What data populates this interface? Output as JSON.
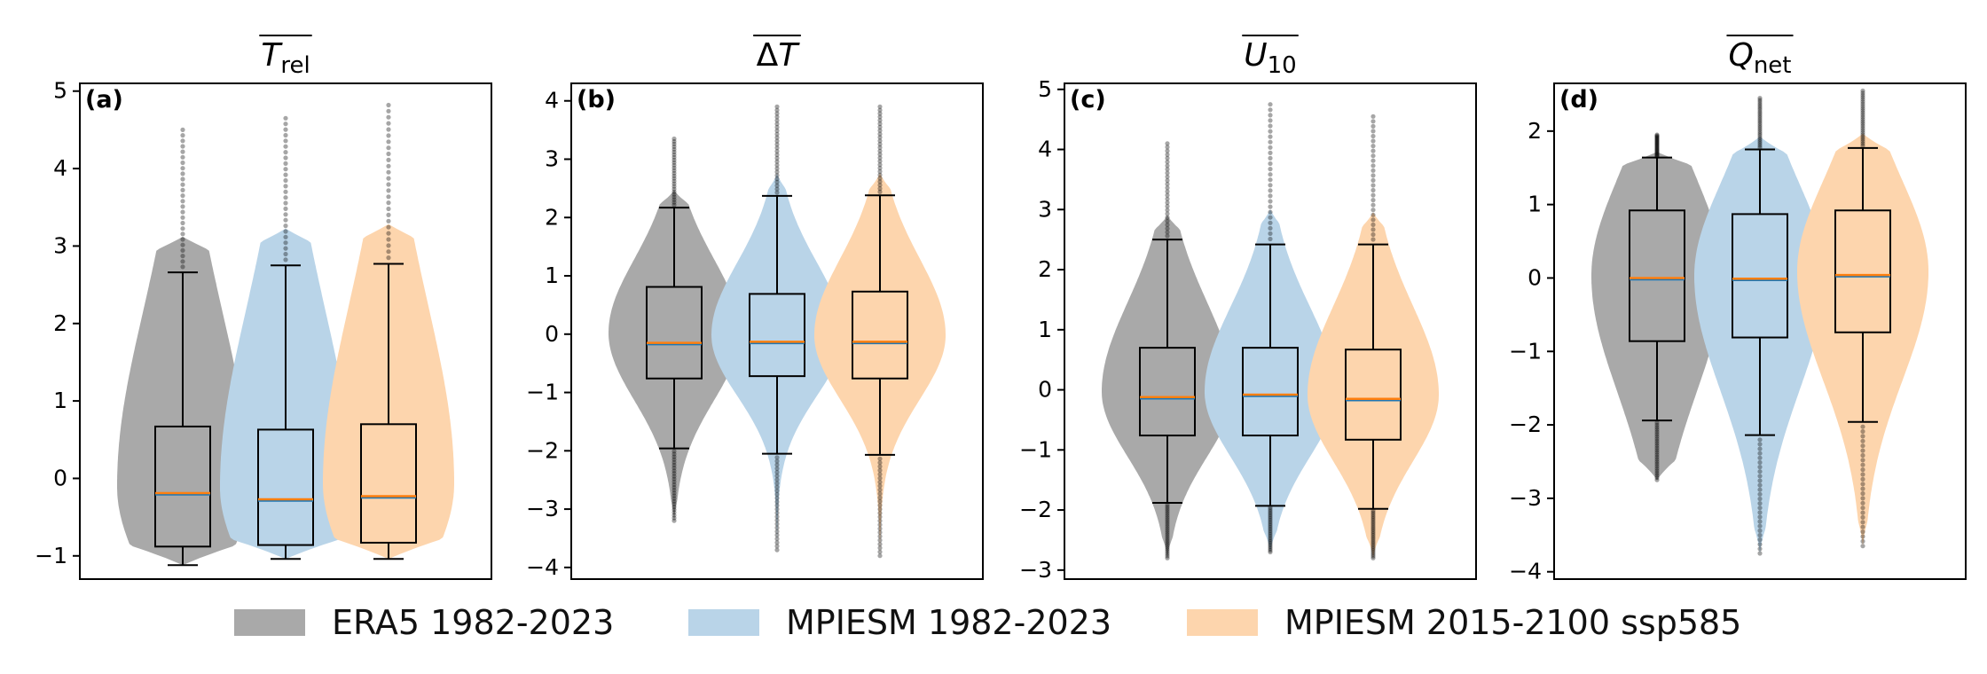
{
  "chart_data": [
    {
      "type": "violin",
      "panel_label": "(a)",
      "title": {
        "base": "T",
        "sub": "rel"
      },
      "ylim": [
        -1.3,
        5.1
      ],
      "yticks": [
        -1,
        0,
        1,
        2,
        3,
        4,
        5
      ],
      "series": [
        {
          "name": "ERA5 1982-2023",
          "q1": -0.88,
          "median": -0.19,
          "q3": 0.67,
          "whislo": -1.12,
          "whishi": 2.66,
          "min": -1.12,
          "max": 4.5
        },
        {
          "name": "MPIESM 1982-2023",
          "q1": -0.86,
          "median": -0.27,
          "q3": 0.63,
          "whislo": -1.04,
          "whishi": 2.75,
          "min": -1.04,
          "max": 4.65
        },
        {
          "name": "MPIESM 2015-2100 ssp585",
          "q1": -0.83,
          "median": -0.23,
          "q3": 0.7,
          "whislo": -1.04,
          "whishi": 2.77,
          "min": -1.04,
          "max": 4.82
        }
      ]
    },
    {
      "type": "violin",
      "panel_label": "(b)",
      "title": {
        "base": "ΔT",
        "sub": ""
      },
      "ylim": [
        -4.2,
        4.3
      ],
      "yticks": [
        -4,
        -3,
        -2,
        -1,
        0,
        1,
        2,
        3,
        4
      ],
      "series": [
        {
          "name": "ERA5 1982-2023",
          "q1": -0.76,
          "median": -0.15,
          "q3": 0.81,
          "whislo": -1.96,
          "whishi": 2.17,
          "min": -3.2,
          "max": 3.35
        },
        {
          "name": "MPIESM 1982-2023",
          "q1": -0.72,
          "median": -0.13,
          "q3": 0.69,
          "whislo": -2.05,
          "whishi": 2.37,
          "min": -3.7,
          "max": 3.9
        },
        {
          "name": "MPIESM 2015-2100 ssp585",
          "q1": -0.76,
          "median": -0.13,
          "q3": 0.73,
          "whislo": -2.07,
          "whishi": 2.38,
          "min": -3.8,
          "max": 3.9
        }
      ]
    },
    {
      "type": "violin",
      "panel_label": "(c)",
      "title": {
        "base": "U",
        "sub": "10"
      },
      "ylim": [
        -3.15,
        5.1
      ],
      "yticks": [
        -3,
        -2,
        -1,
        0,
        1,
        2,
        3,
        4,
        5
      ],
      "series": [
        {
          "name": "ERA5 1982-2023",
          "q1": -0.76,
          "median": -0.12,
          "q3": 0.7,
          "whislo": -1.88,
          "whishi": 2.5,
          "min": -2.8,
          "max": 4.1
        },
        {
          "name": "MPIESM 1982-2023",
          "q1": -0.76,
          "median": -0.08,
          "q3": 0.7,
          "whislo": -1.93,
          "whishi": 2.42,
          "min": -2.7,
          "max": 4.75
        },
        {
          "name": "MPIESM 2015-2100 ssp585",
          "q1": -0.83,
          "median": -0.15,
          "q3": 0.67,
          "whislo": -1.98,
          "whishi": 2.42,
          "min": -2.8,
          "max": 4.55
        }
      ]
    },
    {
      "type": "violin",
      "panel_label": "(d)",
      "title": {
        "base": "Q",
        "sub": "net"
      },
      "ylim": [
        -4.1,
        2.65
      ],
      "yticks": [
        -4,
        -3,
        -2,
        -1,
        0,
        1,
        2
      ],
      "series": [
        {
          "name": "ERA5 1982-2023",
          "q1": -0.86,
          "median": 0.0,
          "q3": 0.92,
          "whislo": -1.94,
          "whishi": 1.64,
          "min": -2.75,
          "max": 1.95
        },
        {
          "name": "MPIESM 1982-2023",
          "q1": -0.81,
          "median": -0.01,
          "q3": 0.87,
          "whislo": -2.14,
          "whishi": 1.75,
          "min": -3.75,
          "max": 2.45
        },
        {
          "name": "MPIESM 2015-2100 ssp585",
          "q1": -0.74,
          "median": 0.04,
          "q3": 0.92,
          "whislo": -1.96,
          "whishi": 1.77,
          "min": -3.65,
          "max": 2.55
        }
      ]
    }
  ],
  "legend": {
    "items": [
      {
        "label": "ERA5 1982-2023",
        "color": "#a9a9a9"
      },
      {
        "label": "MPIESM 1982-2023",
        "color": "#b9d4e8"
      },
      {
        "label": "MPIESM 2015-2100 ssp585",
        "color": "#fdd5ad"
      }
    ]
  },
  "colors": {
    "median": "#ff7f0e",
    "mean": "#1f77b4",
    "box_edge": "#000000",
    "outlier": "#000000"
  }
}
